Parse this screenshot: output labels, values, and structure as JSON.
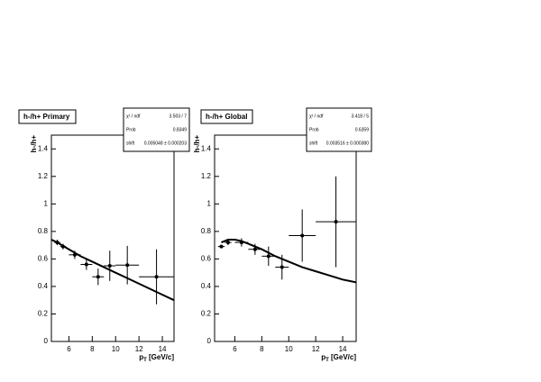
{
  "chart_data": [
    {
      "type": "scatter",
      "title": "h-/h+ Primary",
      "y_label": "h-/h+",
      "x_label_main": "p",
      "x_label_sub": "T",
      "x_label_rest": " [GeV/c]",
      "stats": {
        "labels": [
          "χ² / ndf",
          "Prob",
          "shift"
        ],
        "values": [
          "3.503 / 7",
          "0.8349",
          "0.005048 ± 0.000203"
        ]
      },
      "x": [
        5,
        5.5,
        6.5,
        7.5,
        8.5,
        9.5,
        11,
        13.5
      ],
      "x_errors": [
        0.25,
        0.25,
        0.5,
        0.5,
        0.5,
        0.5,
        1,
        1.5
      ],
      "values": [
        0.72,
        0.69,
        0.63,
        0.56,
        0.47,
        0.55,
        0.555,
        0.47
      ],
      "y_errors": [
        0.02,
        0.02,
        0.03,
        0.04,
        0.06,
        0.11,
        0.14,
        0.2
      ],
      "fit": {
        "x": [
          4.5,
          5,
          6,
          7,
          8,
          9,
          10,
          11,
          12,
          13,
          14,
          15
        ],
        "values": [
          0.74,
          0.72,
          0.67,
          0.62,
          0.58,
          0.54,
          0.5,
          0.46,
          0.42,
          0.38,
          0.34,
          0.3
        ]
      },
      "xlim": [
        4.5,
        15
      ],
      "ylim": [
        0,
        1.5
      ],
      "xticks": [
        6,
        8,
        10,
        12,
        14
      ],
      "yticks": [
        0,
        0.2,
        0.4,
        0.6,
        0.8,
        1,
        1.2,
        1.4
      ],
      "color": "#000000"
    },
    {
      "type": "scatter",
      "title": "h-/h+ Global",
      "y_label": "h-/h+",
      "x_label_main": "p",
      "x_label_sub": "T",
      "x_label_rest": " [GeV/c]",
      "stats": {
        "labels": [
          "χ² / ndf",
          "Prob",
          "shift"
        ],
        "values": [
          "3.418 / 5",
          "0.6359",
          "0.003516 ± 0.000380"
        ]
      },
      "x": [
        5,
        5.5,
        6.5,
        7.5,
        8.5,
        9.5,
        11,
        13.5
      ],
      "x_errors": [
        0.25,
        0.25,
        0.5,
        0.5,
        0.5,
        0.5,
        1,
        1.5
      ],
      "values": [
        0.69,
        0.72,
        0.72,
        0.67,
        0.62,
        0.54,
        0.77,
        0.87
      ],
      "y_errors": [
        0.01,
        0.02,
        0.03,
        0.04,
        0.07,
        0.09,
        0.19,
        0.33
      ],
      "fit": {
        "x": [
          5,
          5.5,
          6,
          6.5,
          7,
          8,
          9,
          10,
          11,
          12,
          13,
          14,
          15
        ],
        "values": [
          0.72,
          0.74,
          0.74,
          0.73,
          0.71,
          0.67,
          0.62,
          0.58,
          0.54,
          0.51,
          0.48,
          0.45,
          0.43
        ]
      },
      "xlim": [
        4.5,
        15
      ],
      "ylim": [
        0,
        1.5
      ],
      "xticks": [
        6,
        8,
        10,
        12,
        14
      ],
      "yticks": [
        0,
        0.2,
        0.4,
        0.6,
        0.8,
        1,
        1.2,
        1.4
      ],
      "color": "#000000"
    }
  ]
}
